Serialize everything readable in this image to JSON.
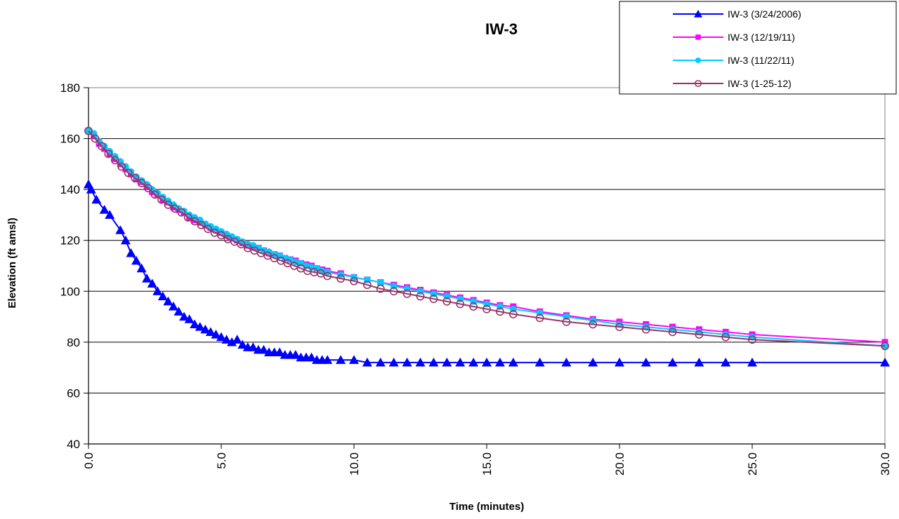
{
  "chart_data": {
    "type": "line",
    "title": "IW-3",
    "xlabel": "Time (minutes)",
    "ylabel": "Elevation (ft amsl)",
    "xlim": [
      0,
      30
    ],
    "ylim": [
      40,
      180
    ],
    "xticks": [
      0,
      5,
      10,
      15,
      20,
      25,
      30
    ],
    "xtick_labels": [
      "0.0",
      "5.0",
      "10.0",
      "15.0",
      "20.0",
      "25.0",
      "30.0"
    ],
    "yticks": [
      40,
      60,
      80,
      100,
      120,
      140,
      160,
      180
    ],
    "ytick_labels": [
      "40",
      "60",
      "80",
      "100",
      "120",
      "140",
      "160",
      "180"
    ],
    "grid": "horizontal",
    "legend_position": "top-right",
    "series": [
      {
        "name": "IW-3 (3/24/2006)",
        "color": "#0000ff",
        "marker": "triangle",
        "x": [
          0,
          0.1,
          0.3,
          0.6,
          0.8,
          1.2,
          1.4,
          1.6,
          1.8,
          2.0,
          2.2,
          2.4,
          2.6,
          2.8,
          3.0,
          3.2,
          3.4,
          3.6,
          3.8,
          4.0,
          4.2,
          4.4,
          4.6,
          4.8,
          5.0,
          5.2,
          5.4,
          5.6,
          5.8,
          6.0,
          6.2,
          6.4,
          6.6,
          6.8,
          7.0,
          7.2,
          7.4,
          7.6,
          7.8,
          8.0,
          8.2,
          8.4,
          8.6,
          8.8,
          9.0,
          9.5,
          10.0,
          10.5,
          11.0,
          11.5,
          12.0,
          12.5,
          13.0,
          13.5,
          14.0,
          14.5,
          15.0,
          15.5,
          16.0,
          17.0,
          18.0,
          19.0,
          20.0,
          21.0,
          22.0,
          23.0,
          24.0,
          25.0,
          30.0
        ],
        "y": [
          142,
          140,
          136,
          132,
          130,
          124,
          120,
          115,
          112,
          109,
          105,
          103,
          100,
          98,
          96,
          94,
          92,
          90,
          89,
          87,
          86,
          85,
          84,
          83,
          82,
          81,
          80,
          81,
          79,
          78,
          78,
          77,
          77,
          76,
          76,
          76,
          75,
          75,
          75,
          74,
          74,
          74,
          73,
          73,
          73,
          73,
          73,
          72,
          72,
          72,
          72,
          72,
          72,
          72,
          72,
          72,
          72,
          72,
          72,
          72,
          72,
          72,
          72,
          72,
          72,
          72,
          72,
          72,
          72
        ]
      },
      {
        "name": "IW-3 (12/19/11)",
        "color": "#ff00ff",
        "marker": "square",
        "x": [
          0,
          0.2,
          0.4,
          0.6,
          0.8,
          1.0,
          1.2,
          1.4,
          1.6,
          1.8,
          2.0,
          2.2,
          2.4,
          2.6,
          2.8,
          3.0,
          3.2,
          3.4,
          3.6,
          3.8,
          4.0,
          4.2,
          4.4,
          4.6,
          4.8,
          5.0,
          5.2,
          5.4,
          5.6,
          5.8,
          6.0,
          6.2,
          6.4,
          6.6,
          6.8,
          7.0,
          7.2,
          7.4,
          7.6,
          7.8,
          8.0,
          8.2,
          8.4,
          8.6,
          8.8,
          9.0,
          9.5,
          10.0,
          10.5,
          11.0,
          11.5,
          12.0,
          12.5,
          13.0,
          13.5,
          14.0,
          14.5,
          15.0,
          15.5,
          16.0,
          17.0,
          18.0,
          19.0,
          20.0,
          21.0,
          22.0,
          23.0,
          24.0,
          25.0,
          30.0
        ],
        "y": [
          163,
          161,
          158,
          156,
          154,
          152,
          150,
          148,
          146,
          144,
          143,
          141,
          139,
          138,
          136,
          135,
          133,
          132,
          131,
          129,
          128,
          127,
          126,
          125,
          124,
          123,
          122,
          121,
          120,
          119,
          118,
          117.5,
          117,
          116,
          115,
          114.5,
          114,
          113,
          112.5,
          112,
          111,
          110.5,
          110,
          109,
          108.5,
          108,
          107,
          105.5,
          104.5,
          103.5,
          102.5,
          101.5,
          100.5,
          99.5,
          98.5,
          97.5,
          96.5,
          95.5,
          94.5,
          94,
          92,
          90.5,
          89,
          88,
          87,
          86,
          85,
          84,
          83,
          80
        ]
      },
      {
        "name": "IW-3 (11/22/11)",
        "color": "#00ccff",
        "marker": "circle",
        "x": [
          0,
          0.2,
          0.4,
          0.6,
          0.8,
          1.0,
          1.2,
          1.4,
          1.6,
          1.8,
          2.0,
          2.2,
          2.4,
          2.6,
          2.8,
          3.0,
          3.2,
          3.4,
          3.6,
          3.8,
          4.0,
          4.2,
          4.4,
          4.6,
          4.8,
          5.0,
          5.2,
          5.4,
          5.6,
          5.8,
          6.0,
          6.2,
          6.4,
          6.6,
          6.8,
          7.0,
          7.2,
          7.4,
          7.6,
          7.8,
          8.0,
          8.2,
          8.4,
          8.6,
          8.8,
          9.0,
          9.5,
          10.0,
          10.5,
          11.0,
          11.5,
          12.0,
          12.5,
          13.0,
          13.5,
          14.0,
          14.5,
          15.0,
          15.5,
          16.0,
          17.0,
          18.0,
          19.0,
          20.0,
          21.0,
          22.0,
          23.0,
          24.0,
          25.0,
          30.0
        ],
        "y": [
          163,
          162,
          159,
          157,
          155,
          153,
          151,
          149,
          147,
          145,
          143.5,
          142,
          140,
          138.5,
          137,
          135.5,
          134,
          132.5,
          131.5,
          130,
          129,
          128,
          126.5,
          125.5,
          124.5,
          123.5,
          122.5,
          121.5,
          120.5,
          119.5,
          118.5,
          118,
          117,
          116,
          115.5,
          114.5,
          114,
          113,
          112.5,
          111.5,
          111,
          110,
          109.5,
          109,
          108,
          107.5,
          106.5,
          105.5,
          104.5,
          103.5,
          102,
          101,
          100,
          99,
          98,
          97,
          96,
          95,
          94,
          93,
          91.5,
          90,
          88.5,
          87,
          86,
          85,
          84,
          83,
          82,
          78.5
        ]
      },
      {
        "name": "IW-3 (1-25-12)",
        "color": "#993366",
        "marker": "open-circle",
        "x": [
          0,
          0.25,
          0.5,
          0.75,
          1.0,
          1.25,
          1.5,
          1.75,
          2.0,
          2.25,
          2.5,
          2.75,
          3.0,
          3.25,
          3.5,
          3.75,
          4.0,
          4.25,
          4.5,
          4.75,
          5.0,
          5.25,
          5.5,
          5.75,
          6.0,
          6.25,
          6.5,
          6.75,
          7.0,
          7.25,
          7.5,
          7.75,
          8.0,
          8.25,
          8.5,
          8.75,
          9.0,
          9.5,
          10.0,
          10.5,
          11.0,
          11.5,
          12.0,
          12.5,
          13.0,
          13.5,
          14.0,
          14.5,
          15.0,
          15.5,
          16.0,
          17.0,
          18.0,
          19.0,
          20.0,
          21.0,
          22.0,
          23.0,
          24.0,
          25.0,
          30.0
        ],
        "y": [
          163,
          160,
          157,
          154,
          151.5,
          149,
          146.5,
          144.5,
          142.5,
          140.5,
          138,
          136,
          134,
          132.5,
          131,
          129,
          127.5,
          126,
          124.5,
          123,
          122,
          120.5,
          119.5,
          118.5,
          117,
          116,
          115,
          114,
          113,
          112,
          111,
          110,
          109,
          108,
          107.5,
          107,
          106,
          105,
          104,
          102.5,
          101,
          100,
          99,
          98,
          97,
          96,
          95,
          94,
          93,
          92,
          91,
          89.5,
          88,
          87,
          86,
          85,
          84,
          83,
          82,
          81,
          78.5
        ]
      }
    ]
  }
}
